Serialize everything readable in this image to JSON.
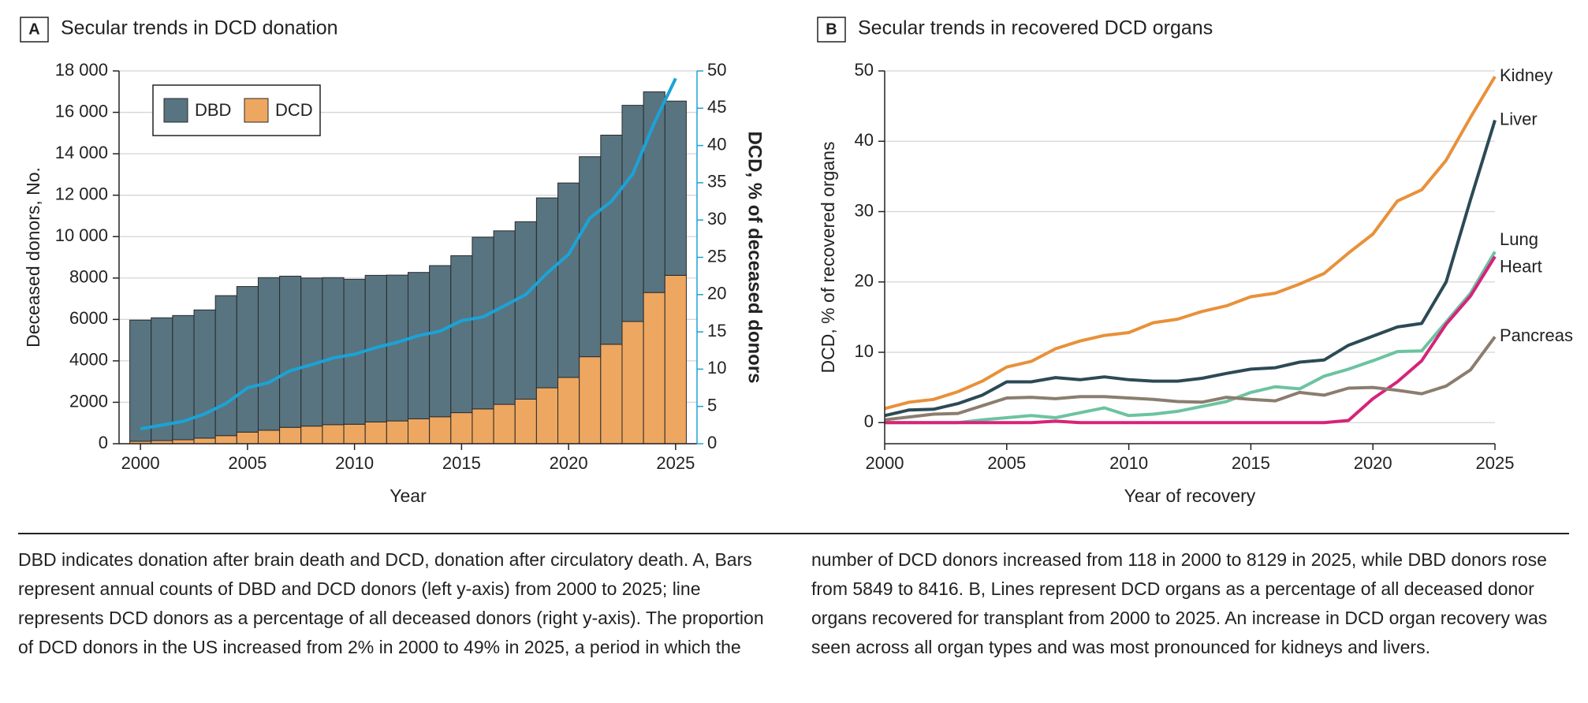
{
  "chart_data": [
    {
      "type": "bar",
      "panel": "A",
      "title": "Secular trends in DCD donation",
      "x_label": "Year",
      "y_label": "Deceased donors, No.",
      "y2_label": "DCD, % of deceased donors",
      "x": [
        2000,
        2001,
        2002,
        2003,
        2004,
        2005,
        2006,
        2007,
        2008,
        2009,
        2010,
        2011,
        2012,
        2013,
        2014,
        2015,
        2016,
        2017,
        2018,
        2019,
        2020,
        2021,
        2022,
        2023,
        2024,
        2025
      ],
      "series": [
        {
          "name": "DBD",
          "color": "#587481",
          "values": [
            5849,
            5930,
            6000,
            6190,
            6760,
            7030,
            7370,
            7300,
            7150,
            7100,
            7000,
            7080,
            7040,
            7070,
            7300,
            7580,
            8290,
            8380,
            8570,
            9170,
            9390,
            9660,
            10100,
            10440,
            9690,
            8416
          ]
        },
        {
          "name": "DCD",
          "color": "#eea760",
          "values": [
            118,
            150,
            190,
            270,
            390,
            560,
            650,
            790,
            850,
            920,
            940,
            1050,
            1100,
            1200,
            1300,
            1500,
            1680,
            1900,
            2150,
            2700,
            3200,
            4200,
            4800,
            5900,
            7300,
            8129
          ]
        },
        {
          "type": "line",
          "axis": "y2",
          "color": "#1ba3d6",
          "values": [
            2,
            2.5,
            3,
            4,
            5.4,
            7.5,
            8.2,
            9.8,
            10.6,
            11.5,
            12,
            12.9,
            13.6,
            14.5,
            15.1,
            16.5,
            17,
            18.5,
            20,
            22.9,
            25.4,
            30.3,
            32.5,
            36.2,
            43,
            49
          ]
        }
      ],
      "xlim": [
        1999,
        2026
      ],
      "xticks": [
        2000,
        2005,
        2010,
        2015,
        2020,
        2025
      ],
      "ylim": [
        0,
        18000
      ],
      "yticks": [
        0,
        2000,
        4000,
        6000,
        8000,
        {
          "value": 10000,
          "label": "10 000"
        },
        {
          "value": 12000,
          "label": "12 000"
        },
        {
          "value": 14000,
          "label": "14 000"
        },
        {
          "value": 16000,
          "label": "16 000"
        },
        {
          "value": 18000,
          "label": "18 000"
        }
      ],
      "y2lim": [
        0,
        50
      ],
      "y2ticks": [
        0,
        5,
        10,
        15,
        20,
        25,
        30,
        35,
        40,
        45,
        50
      ],
      "grid": true,
      "legend": "upper left"
    },
    {
      "type": "line",
      "panel": "B",
      "title": "Secular trends in recovered DCD organs",
      "x_label": "Year of recovery",
      "y_label": "DCD, % of recovered organs",
      "x": [
        2000,
        2001,
        2002,
        2003,
        2004,
        2005,
        2006,
        2007,
        2008,
        2009,
        2010,
        2011,
        2012,
        2013,
        2014,
        2015,
        2016,
        2017,
        2018,
        2019,
        2020,
        2021,
        2022,
        2023,
        2024,
        2025
      ],
      "series": [
        {
          "name": "Kidney",
          "color": "#e8913a",
          "values": [
            2,
            2.9,
            3.3,
            4.4,
            5.9,
            7.9,
            8.7,
            10.5,
            11.6,
            12.4,
            12.8,
            14.2,
            14.7,
            15.8,
            16.6,
            17.9,
            18.4,
            19.7,
            21.2,
            24.1,
            26.8,
            31.5,
            33.1,
            37.3,
            43.4,
            49.2
          ]
        },
        {
          "name": "Liver",
          "color": "#2c4a55",
          "values": [
            1,
            1.8,
            1.9,
            2.7,
            3.9,
            5.8,
            5.8,
            6.4,
            6.1,
            6.5,
            6.1,
            5.9,
            5.9,
            6.3,
            7,
            7.6,
            7.8,
            8.6,
            8.9,
            11,
            12.3,
            13.6,
            14.1,
            20,
            31.7,
            43
          ]
        },
        {
          "name": "Lung",
          "color": "#6cc3a0",
          "values": [
            0,
            0,
            0,
            0,
            0.4,
            0.7,
            1,
            0.7,
            1.4,
            2.1,
            1,
            1.2,
            1.6,
            2.3,
            3,
            4.3,
            5.1,
            4.8,
            6.6,
            7.6,
            8.8,
            10.1,
            10.2,
            14.3,
            18.4,
            24.3
          ]
        },
        {
          "name": "Heart",
          "color": "#d6237a",
          "values": [
            0,
            0,
            0,
            0,
            0,
            0,
            0,
            0.2,
            0,
            0,
            0,
            0,
            0,
            0,
            0,
            0,
            0,
            0,
            0,
            0.3,
            3.4,
            5.8,
            8.8,
            14,
            18,
            23.6
          ]
        },
        {
          "name": "Pancreas",
          "color": "#8b7d6f",
          "values": [
            0.4,
            0.8,
            1.2,
            1.3,
            2.4,
            3.5,
            3.6,
            3.4,
            3.7,
            3.7,
            3.5,
            3.3,
            3,
            2.9,
            3.6,
            3.3,
            3.1,
            4.3,
            3.9,
            4.9,
            5,
            4.6,
            4.1,
            5.2,
            7.5,
            12.2
          ]
        }
      ],
      "xlim": [
        2000,
        2025
      ],
      "xticks": [
        2000,
        2005,
        2010,
        2015,
        2020,
        2025
      ],
      "ylim": [
        -3,
        50
      ],
      "yticks": [
        0,
        10,
        20,
        30,
        40,
        50
      ],
      "grid": true
    }
  ],
  "caption": "DBD indicates donation after brain death and DCD, donation after circulatory death. A, Bars represent annual counts of DBD and DCD donors (left y-axis) from 2000 to 2025; line represents DCD donors as a percentage of all deceased donors (right y-axis). The proportion of DCD donors in the US increased from 2% in 2000 to 49% in 2025, a period in which the number of DCD donors increased from 118 in 2000 to 8129 in 2025, while DBD donors rose from 5849 to 8416. B, Lines represent DCD organs as a percentage of all deceased donor organs recovered for transplant from 2000 to 2025. An increase in DCD organ recovery was seen across all organ types and was most pronounced for kidneys and livers."
}
